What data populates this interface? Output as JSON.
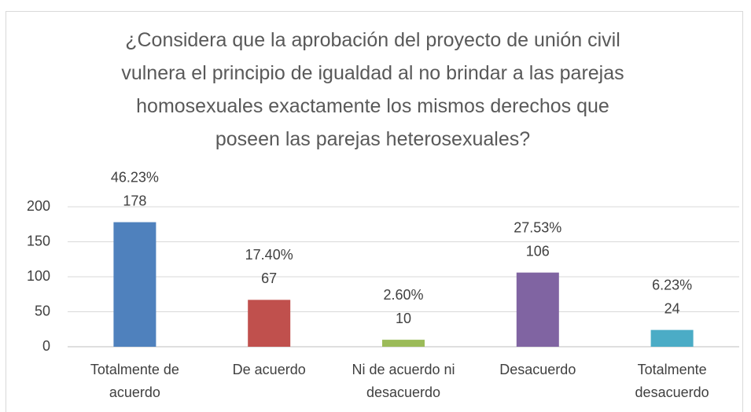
{
  "chart_data": {
    "type": "bar",
    "title": "¿Considera que la aprobación del proyecto de unión civil vulnera el principio de igualdad al no brindar a las parejas homosexuales exactamente los mismos derechos que poseen las parejas heterosexuales?",
    "categories": [
      "Totalmente de acuerdo",
      "De acuerdo",
      "Ni de acuerdo ni desacuerdo",
      "Desacuerdo",
      "Totalmente desacuerdo"
    ],
    "values": [
      178,
      67,
      10,
      106,
      24
    ],
    "percentages": [
      "46.23%",
      "17.40%",
      "2.60%",
      "27.53%",
      "6.23%"
    ],
    "colors": [
      "#4f81bd",
      "#c0504d",
      "#9bbb59",
      "#8064a2",
      "#4bacc6"
    ],
    "ylim": [
      0,
      200
    ],
    "yticks": [
      0,
      50,
      100,
      150,
      200
    ],
    "grid": true
  }
}
